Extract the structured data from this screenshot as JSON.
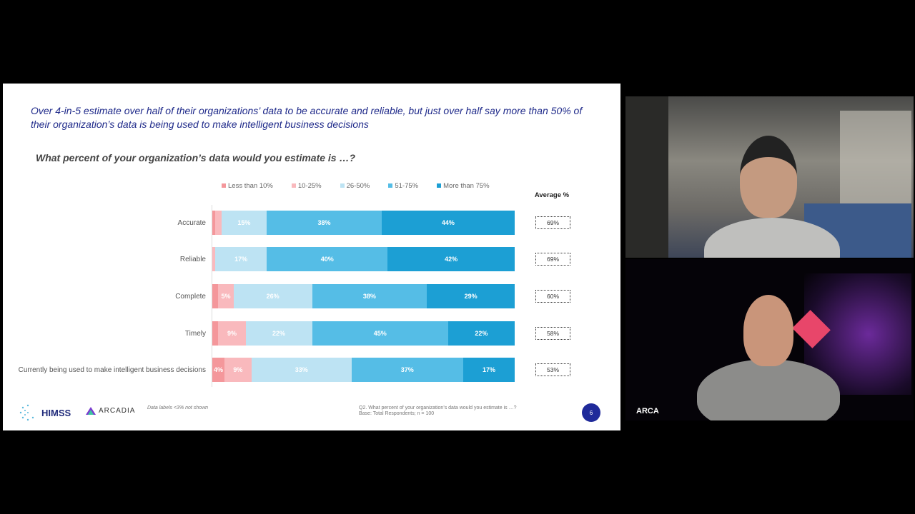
{
  "slide": {
    "headline": "Over 4-in-5 estimate over half of their organizations’ data to be accurate and reliable, but just over half say more than 50% of their organization’s data is being used to make intelligent business decisions",
    "question": "What percent of your organization’s data would you estimate is …?",
    "avg_header": "Average %",
    "footer_note": "Data labels <3% not shown",
    "footer_question": "Q2.  What percent of your organization’s data would you estimate is …?",
    "footer_base": "Base: Total Respondents; n = 100",
    "page_number": "6",
    "logos": [
      "HIMSS",
      "ARCADIA"
    ]
  },
  "chart_data": {
    "type": "bar",
    "orientation": "horizontal-stacked-100",
    "title": "What percent of your organization’s data would you estimate is …?",
    "legend_position": "top",
    "series": [
      {
        "name": "Less than 10%",
        "color": "#f4979b",
        "values": [
          1,
          0,
          2,
          2,
          4
        ]
      },
      {
        "name": "10-25%",
        "color": "#f9b9bd",
        "values": [
          2,
          1,
          5,
          9,
          9
        ]
      },
      {
        "name": "26-50%",
        "color": "#bde3f3",
        "values": [
          15,
          17,
          26,
          22,
          33
        ]
      },
      {
        "name": "51-75%",
        "color": "#55bde6",
        "values": [
          38,
          40,
          38,
          45,
          37
        ]
      },
      {
        "name": "More than 75%",
        "color": "#1c9fd4",
        "values": [
          44,
          42,
          29,
          22,
          17
        ]
      }
    ],
    "categories": [
      "Accurate",
      "Reliable",
      "Complete",
      "Timely",
      "Currently being used to make intelligent business decisions"
    ],
    "averages": [
      "69%",
      "69%",
      "60%",
      "58%",
      "53%"
    ],
    "label_threshold": 3
  },
  "video": {
    "participants": [
      "participant-1",
      "participant-2"
    ],
    "overlay_logo": "ARCA"
  }
}
